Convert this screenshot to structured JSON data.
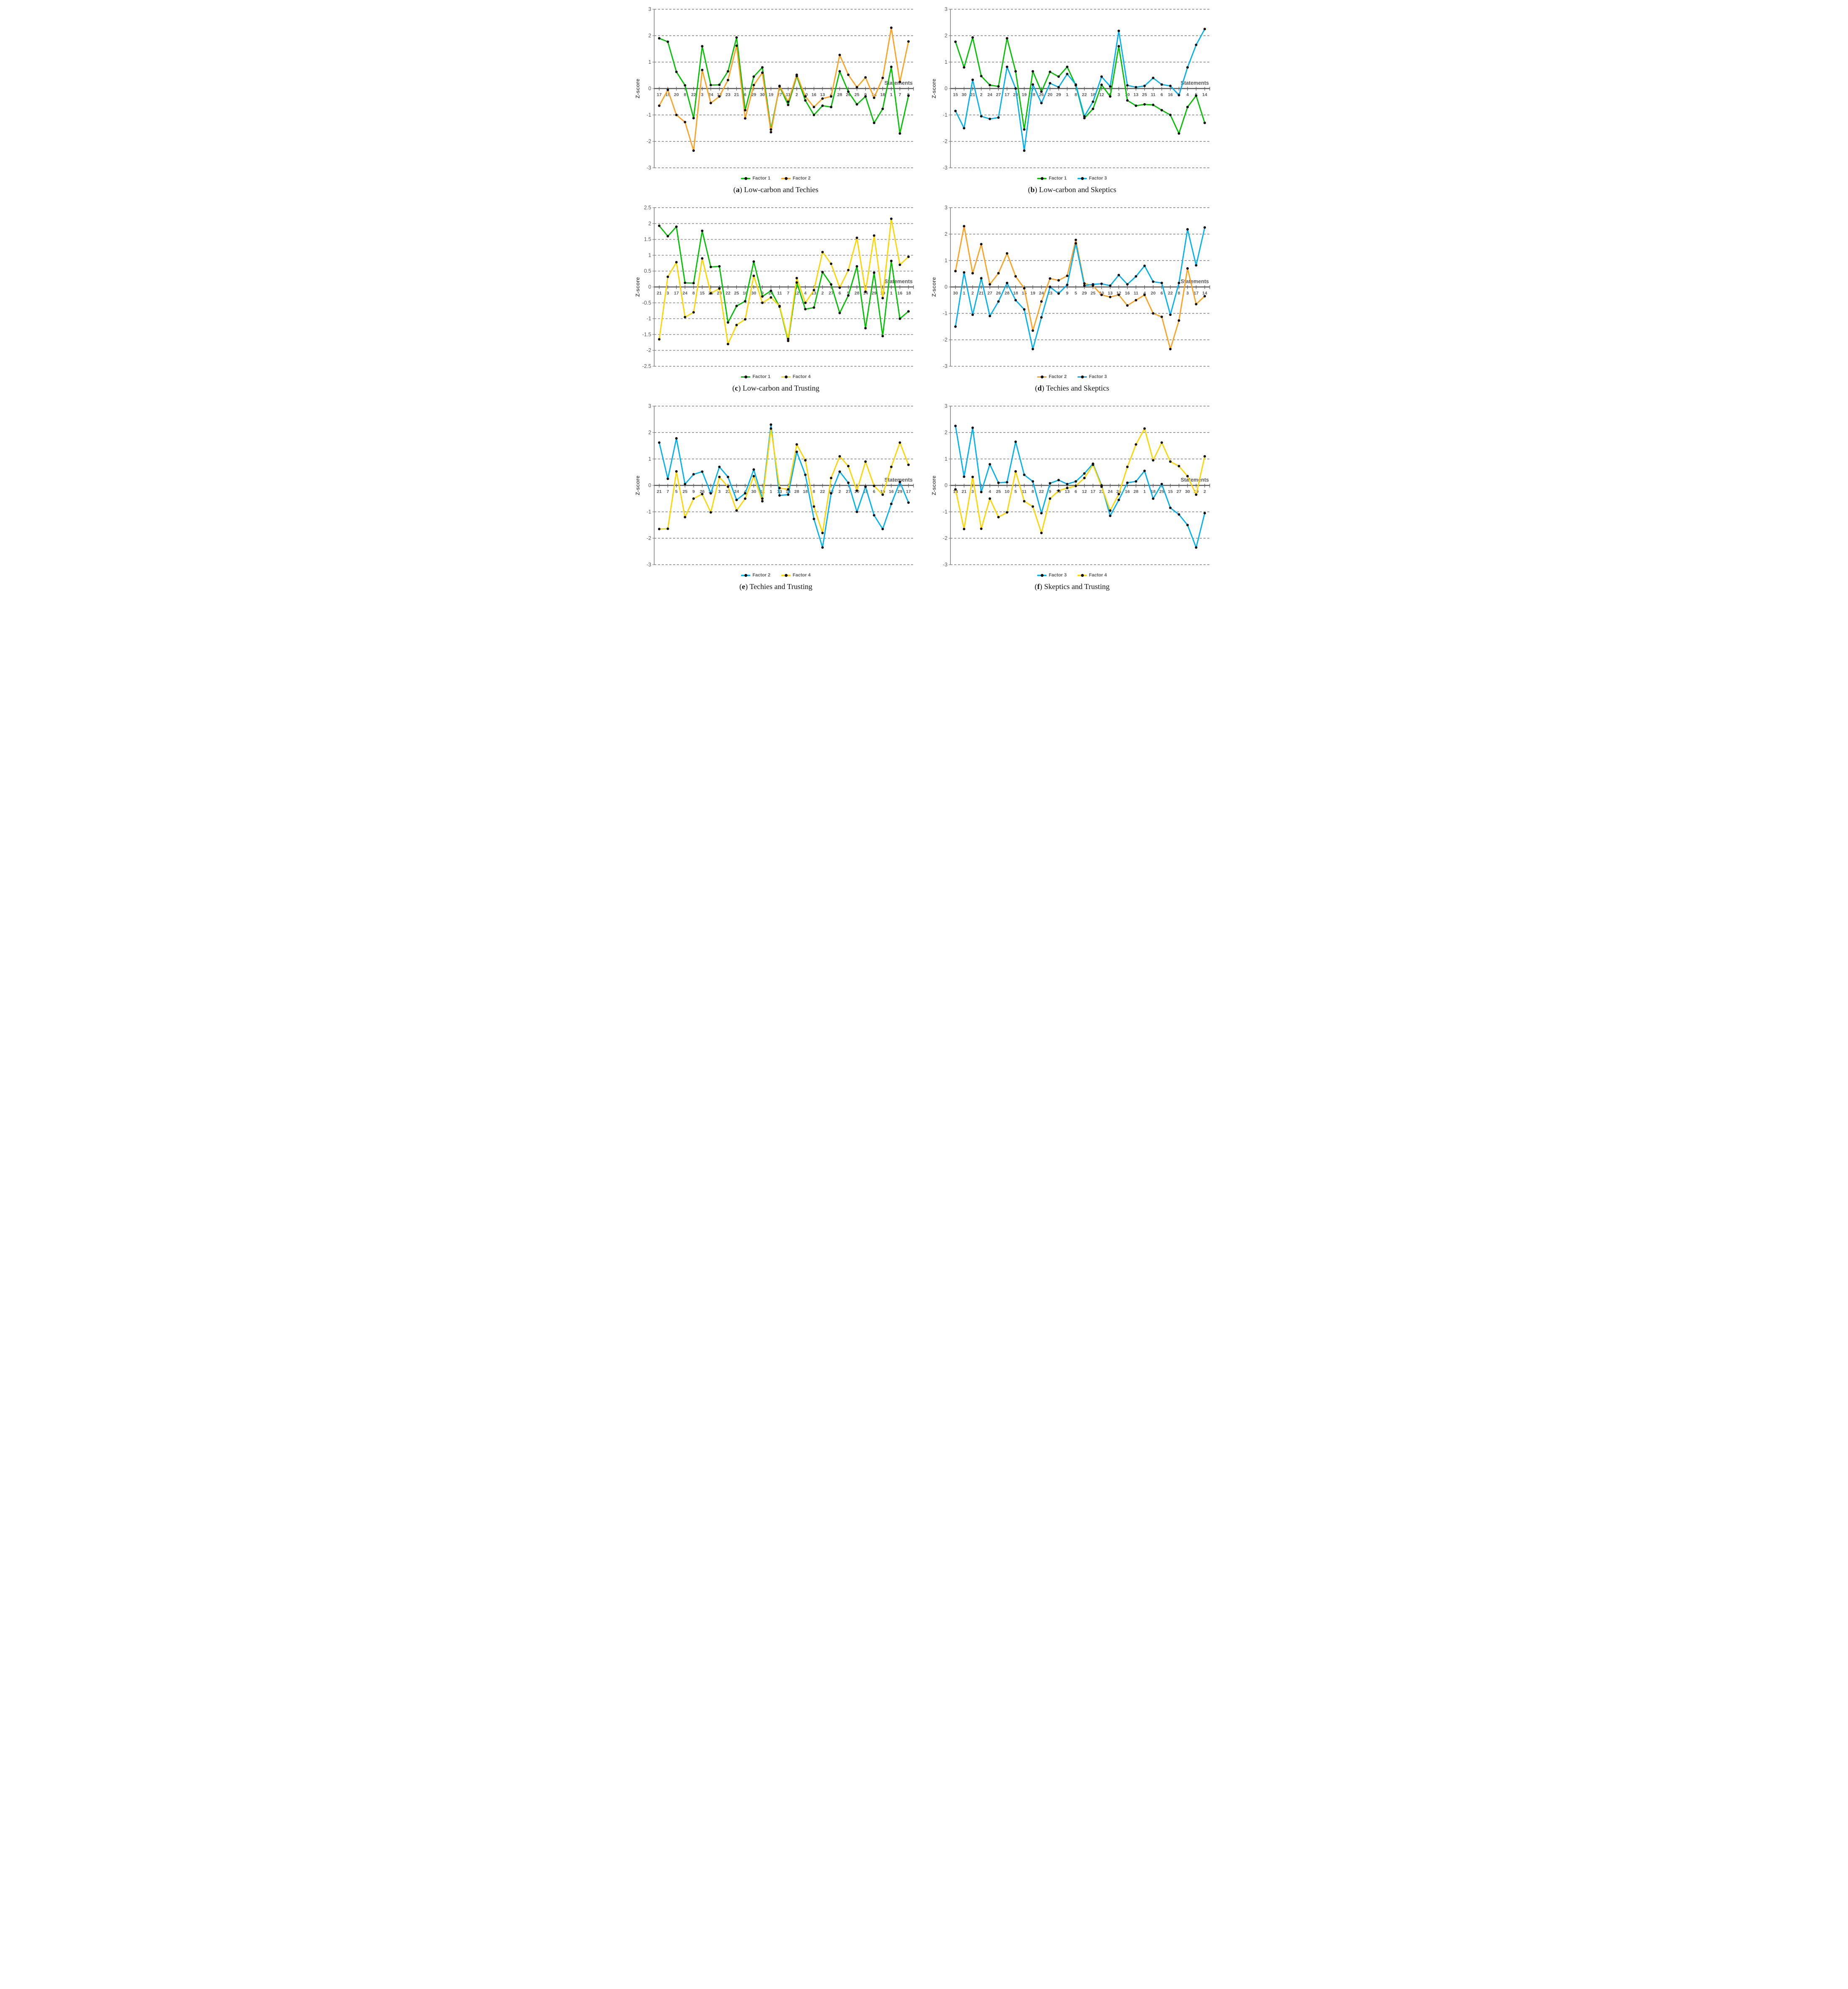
{
  "figure": {
    "ylabel": "Z-score",
    "xlabel": "Statements"
  },
  "chart_data": [
    {
      "id": "a",
      "type": "line",
      "caption_letter": "a",
      "title": "Low-carbon and Techies",
      "xlabel": "Statements",
      "ylabel": "Z-score",
      "ylim": [
        -3,
        3
      ],
      "ytick_step": 1,
      "grid": "dashed-horizontal",
      "legend_position": "bottom",
      "categories": [
        17,
        15,
        20,
        8,
        22,
        3,
        24,
        12,
        23,
        21,
        6,
        29,
        30,
        19,
        27,
        11,
        2,
        10,
        16,
        13,
        4,
        28,
        26,
        25,
        9,
        14,
        18,
        1,
        7,
        5
      ],
      "series": [
        {
          "name": "Factor 1",
          "color": "#00c000",
          "values": [
            1.9,
            1.77,
            0.63,
            0.12,
            -1.12,
            1.6,
            0.13,
            0.14,
            0.65,
            1.93,
            -0.82,
            0.45,
            0.8,
            -1.55,
            0.08,
            -0.62,
            0.47,
            -0.45,
            -1.0,
            -0.65,
            -0.7,
            0.65,
            -0.12,
            -0.6,
            -0.3,
            -1.3,
            -0.77,
            0.82,
            -1.7,
            -0.27
          ]
        },
        {
          "name": "Factor 2",
          "color": "#ffa020",
          "values": [
            -0.65,
            -0.05,
            -1.0,
            -1.27,
            -2.35,
            0.7,
            -0.55,
            -0.3,
            0.32,
            1.62,
            -1.13,
            0.13,
            0.6,
            -1.65,
            0.1,
            -0.5,
            0.52,
            -0.3,
            -0.7,
            -0.38,
            -0.3,
            1.27,
            0.52,
            0.05,
            0.42,
            -0.35,
            0.4,
            2.3,
            0.25,
            1.78
          ]
        }
      ]
    },
    {
      "id": "b",
      "type": "line",
      "caption_letter": "b",
      "title": "Low-carbon and Skeptics",
      "xlabel": "Statements",
      "ylabel": "Z-score",
      "ylim": [
        -3,
        3
      ],
      "ytick_step": 1,
      "grid": "dashed-horizontal",
      "legend_position": "bottom",
      "categories": [
        15,
        30,
        21,
        2,
        24,
        27,
        17,
        23,
        19,
        28,
        26,
        20,
        29,
        1,
        8,
        22,
        18,
        12,
        9,
        3,
        10,
        13,
        25,
        11,
        6,
        16,
        7,
        4,
        5,
        14
      ],
      "series": [
        {
          "name": "Factor 1",
          "color": "#00c000",
          "values": [
            1.77,
            0.8,
            1.93,
            0.47,
            0.13,
            0.08,
            1.9,
            0.65,
            -1.55,
            0.65,
            -0.12,
            0.63,
            0.45,
            0.82,
            0.12,
            -1.12,
            -0.77,
            0.14,
            -0.3,
            1.6,
            -0.45,
            -0.65,
            -0.6,
            -0.62,
            -0.82,
            -1.0,
            -1.7,
            -0.7,
            -0.27,
            -1.3
          ]
        },
        {
          "name": "Factor 3",
          "color": "#00b0f0",
          "values": [
            -0.85,
            -1.5,
            0.33,
            -1.05,
            -1.15,
            -1.1,
            0.82,
            0.0,
            -2.35,
            0.15,
            -0.55,
            0.2,
            0.05,
            0.55,
            0.15,
            -1.05,
            -0.5,
            0.45,
            0.08,
            2.18,
            0.12,
            0.05,
            0.1,
            0.4,
            0.15,
            0.1,
            -0.25,
            0.8,
            1.65,
            2.25
          ]
        }
      ]
    },
    {
      "id": "c",
      "type": "line",
      "caption_letter": "c",
      "title": "Low-carbon and Trusting",
      "xlabel": "Statements",
      "ylabel": "Z-score",
      "ylim": [
        -2.5,
        2.5
      ],
      "ytick_step": 0.5,
      "grid": "dashed-horizontal",
      "legend_position": "bottom",
      "categories": [
        21,
        3,
        17,
        24,
        8,
        15,
        20,
        23,
        22,
        25,
        10,
        30,
        9,
        26,
        11,
        7,
        12,
        4,
        13,
        2,
        27,
        6,
        5,
        28,
        14,
        29,
        19,
        1,
        16,
        18
      ],
      "series": [
        {
          "name": "Factor 1",
          "color": "#00c000",
          "values": [
            1.93,
            1.6,
            1.9,
            0.13,
            0.12,
            1.77,
            0.63,
            0.65,
            -1.12,
            -0.6,
            -0.45,
            0.8,
            -0.3,
            -0.12,
            -0.62,
            -1.7,
            0.14,
            -0.7,
            -0.65,
            0.47,
            0.08,
            -0.82,
            -0.27,
            0.65,
            -1.3,
            0.45,
            -1.55,
            0.82,
            -1.0,
            -0.77
          ]
        },
        {
          "name": "Factor 4",
          "color": "#ffd500",
          "values": [
            -1.65,
            0.32,
            0.78,
            -0.95,
            -0.8,
            0.9,
            -0.2,
            -0.05,
            -1.8,
            -1.2,
            -1.02,
            0.35,
            -0.5,
            -0.33,
            -0.6,
            -1.64,
            0.28,
            -0.5,
            -0.1,
            1.1,
            0.73,
            -0.02,
            0.53,
            1.55,
            -0.15,
            1.62,
            -0.35,
            2.15,
            0.7,
            0.95
          ]
        }
      ]
    },
    {
      "id": "d",
      "type": "line",
      "caption_letter": "d",
      "title": "Techies and Skeptics",
      "xlabel": "Statements",
      "ylabel": "Z-score",
      "ylim": [
        -3,
        3
      ],
      "ytick_step": 1,
      "grid": "dashed-horizontal",
      "legend_position": "bottom",
      "categories": [
        30,
        1,
        2,
        21,
        27,
        26,
        28,
        18,
        15,
        19,
        24,
        23,
        7,
        9,
        5,
        29,
        25,
        10,
        13,
        12,
        16,
        11,
        4,
        20,
        6,
        22,
        8,
        3,
        17,
        14
      ],
      "series": [
        {
          "name": "Factor 2",
          "color": "#ffa020",
          "values": [
            0.6,
            2.3,
            0.52,
            1.62,
            0.1,
            0.52,
            1.27,
            0.4,
            -0.05,
            -1.65,
            -0.55,
            0.32,
            0.25,
            0.42,
            1.78,
            0.13,
            0.05,
            -0.3,
            -0.38,
            -0.3,
            -0.7,
            -0.5,
            -0.3,
            -1.0,
            -1.13,
            -2.35,
            -1.27,
            0.7,
            -0.65,
            -0.35
          ]
        },
        {
          "name": "Factor 3",
          "color": "#00b0f0",
          "values": [
            -1.5,
            0.55,
            -1.05,
            0.33,
            -1.1,
            -0.55,
            0.15,
            -0.5,
            -0.85,
            -2.35,
            -1.15,
            0.0,
            -0.25,
            0.08,
            1.65,
            0.05,
            0.1,
            0.12,
            0.05,
            0.45,
            0.1,
            0.4,
            0.8,
            0.2,
            0.15,
            -1.05,
            0.15,
            2.18,
            0.82,
            2.25
          ]
        }
      ]
    },
    {
      "id": "e",
      "type": "line",
      "caption_letter": "e",
      "title": "Techies and Trusting",
      "xlabel": "Statements",
      "ylabel": "Z-score",
      "ylim": [
        -3,
        3
      ],
      "ytick_step": 1,
      "grid": "dashed-horizontal",
      "legend_position": "bottom",
      "categories": [
        21,
        7,
        5,
        25,
        9,
        26,
        10,
        3,
        23,
        24,
        4,
        30,
        11,
        1,
        13,
        14,
        28,
        18,
        8,
        22,
        12,
        2,
        27,
        20,
        15,
        6,
        19,
        16,
        29,
        17
      ],
      "series": [
        {
          "name": "Factor 2",
          "color": "#00b0f0",
          "values": [
            1.62,
            0.25,
            1.78,
            0.05,
            0.42,
            0.52,
            -0.3,
            0.7,
            0.32,
            -0.55,
            -0.3,
            0.6,
            -0.5,
            2.3,
            -0.38,
            -0.35,
            1.27,
            0.4,
            -1.27,
            -2.35,
            -0.3,
            0.52,
            0.1,
            -1.0,
            -0.05,
            -1.13,
            -1.65,
            -0.7,
            0.13,
            -0.65
          ]
        },
        {
          "name": "Factor 4",
          "color": "#ffd500",
          "values": [
            -1.65,
            -1.64,
            0.53,
            -1.2,
            -0.5,
            -0.33,
            -1.02,
            0.32,
            -0.05,
            -0.95,
            -0.5,
            0.35,
            -0.6,
            2.15,
            -0.1,
            -0.15,
            1.55,
            0.95,
            -0.8,
            -1.8,
            0.28,
            1.1,
            0.73,
            -0.2,
            0.9,
            -0.02,
            -0.35,
            0.7,
            1.62,
            0.78
          ]
        }
      ]
    },
    {
      "id": "f",
      "type": "line",
      "caption_letter": "f",
      "title": "Skeptics and Trusting",
      "xlabel": "Statements",
      "ylabel": "Z-score",
      "ylim": [
        -3,
        3
      ],
      "ytick_step": 1,
      "grid": "dashed-horizontal",
      "legend_position": "bottom",
      "categories": [
        14,
        21,
        3,
        7,
        4,
        25,
        10,
        5,
        11,
        8,
        22,
        9,
        20,
        13,
        6,
        12,
        17,
        23,
        24,
        26,
        16,
        28,
        1,
        18,
        29,
        15,
        27,
        30,
        19,
        2
      ],
      "series": [
        {
          "name": "Factor 3",
          "color": "#00b0f0",
          "values": [
            2.25,
            0.33,
            2.18,
            -0.25,
            0.8,
            0.1,
            0.12,
            1.65,
            0.4,
            0.15,
            -1.05,
            0.08,
            0.2,
            0.05,
            0.15,
            0.45,
            0.82,
            0.0,
            -1.15,
            -0.55,
            0.1,
            0.15,
            0.55,
            -0.5,
            0.05,
            -0.85,
            -1.1,
            -1.5,
            -2.35,
            -1.05
          ]
        },
        {
          "name": "Factor 4",
          "color": "#ffd500",
          "values": [
            -0.15,
            -1.65,
            0.32,
            -1.64,
            -0.5,
            -1.2,
            -1.02,
            0.53,
            -0.6,
            -0.8,
            -1.8,
            -0.5,
            -0.2,
            -0.1,
            -0.02,
            0.28,
            0.78,
            -0.05,
            -0.95,
            -0.33,
            0.7,
            1.55,
            2.15,
            0.95,
            1.62,
            0.9,
            0.73,
            0.35,
            -0.35,
            1.1
          ]
        }
      ]
    }
  ]
}
